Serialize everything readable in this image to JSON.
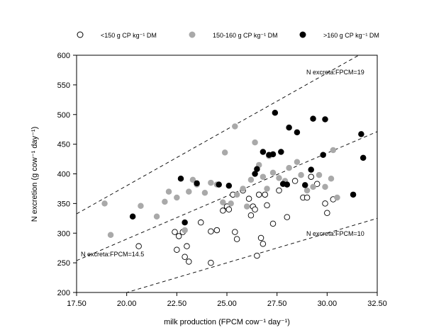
{
  "chart_data": {
    "type": "scatter",
    "xlabel": "milk production (FPCM cow⁻¹ day⁻¹)",
    "ylabel": "N excretion (g cow⁻¹ day⁻¹)",
    "xlim": [
      17.5,
      32.5
    ],
    "ylim": [
      200,
      600
    ],
    "x_ticks": [
      "17.50",
      "20.00",
      "22.50",
      "25.00",
      "27.50",
      "30.00",
      "32.50"
    ],
    "y_ticks": [
      "200",
      "250",
      "300",
      "350",
      "400",
      "450",
      "500",
      "550",
      "600"
    ],
    "grid": false,
    "legend_position": "top",
    "series": [
      {
        "name": "<150 g CP kg⁻¹ DM",
        "marker": "open-circle",
        "color": "#000000",
        "points": [
          [
            20.6,
            278
          ],
          [
            22.4,
            302
          ],
          [
            22.6,
            295
          ],
          [
            22.8,
            302
          ],
          [
            22.9,
            260
          ],
          [
            23.0,
            278
          ],
          [
            23.1,
            252
          ],
          [
            22.5,
            272
          ],
          [
            23.7,
            318
          ],
          [
            24.2,
            250
          ],
          [
            24.2,
            303
          ],
          [
            24.5,
            305
          ],
          [
            24.8,
            338
          ],
          [
            25.0,
            345
          ],
          [
            25.1,
            340
          ],
          [
            25.3,
            365
          ],
          [
            25.4,
            302
          ],
          [
            25.5,
            290
          ],
          [
            25.8,
            372
          ],
          [
            26.1,
            358
          ],
          [
            26.2,
            330
          ],
          [
            26.3,
            345
          ],
          [
            26.4,
            340
          ],
          [
            26.5,
            262
          ],
          [
            26.6,
            365
          ],
          [
            26.7,
            292
          ],
          [
            26.8,
            282
          ],
          [
            26.9,
            365
          ],
          [
            27.0,
            347
          ],
          [
            27.3,
            316
          ],
          [
            27.6,
            372
          ],
          [
            28.0,
            327
          ],
          [
            28.4,
            388
          ],
          [
            28.8,
            360
          ],
          [
            29.0,
            360
          ],
          [
            29.2,
            395
          ],
          [
            29.5,
            383
          ],
          [
            29.9,
            350
          ],
          [
            30.0,
            334
          ],
          [
            30.3,
            357
          ]
        ]
      },
      {
        "name": "150-160 g CP kg⁻¹ DM",
        "marker": "grey-circle",
        "color": "#a9a9a9",
        "points": [
          [
            18.9,
            350
          ],
          [
            19.2,
            297
          ],
          [
            20.7,
            346
          ],
          [
            21.5,
            328
          ],
          [
            21.9,
            353
          ],
          [
            22.1,
            370
          ],
          [
            22.5,
            360
          ],
          [
            22.9,
            305
          ],
          [
            23.1,
            370
          ],
          [
            23.3,
            390
          ],
          [
            23.5,
            382
          ],
          [
            23.9,
            368
          ],
          [
            24.2,
            385
          ],
          [
            24.5,
            382
          ],
          [
            24.8,
            352
          ],
          [
            24.9,
            436
          ],
          [
            25.2,
            350
          ],
          [
            25.4,
            480
          ],
          [
            25.5,
            365
          ],
          [
            25.8,
            375
          ],
          [
            26.0,
            345
          ],
          [
            26.2,
            390
          ],
          [
            26.4,
            453
          ],
          [
            26.6,
            415
          ],
          [
            26.8,
            395
          ],
          [
            27.0,
            375
          ],
          [
            27.1,
            430
          ],
          [
            27.3,
            402
          ],
          [
            27.6,
            393
          ],
          [
            27.9,
            388
          ],
          [
            28.1,
            410
          ],
          [
            28.5,
            420
          ],
          [
            28.7,
            398
          ],
          [
            29.0,
            372
          ],
          [
            29.3,
            378
          ],
          [
            29.6,
            398
          ],
          [
            29.9,
            378
          ],
          [
            30.2,
            392
          ],
          [
            30.3,
            440
          ],
          [
            30.5,
            360
          ]
        ]
      },
      {
        "name": ">160 g CP kg⁻¹ DM",
        "marker": "filled-circle",
        "color": "#000000",
        "points": [
          [
            20.3,
            328
          ],
          [
            22.7,
            392
          ],
          [
            22.9,
            318
          ],
          [
            23.5,
            384
          ],
          [
            24.6,
            382
          ],
          [
            25.1,
            380
          ],
          [
            26.4,
            400
          ],
          [
            26.5,
            408
          ],
          [
            26.8,
            437
          ],
          [
            27.1,
            432
          ],
          [
            27.3,
            433
          ],
          [
            27.4,
            503
          ],
          [
            27.7,
            437
          ],
          [
            27.8,
            383
          ],
          [
            28.0,
            382
          ],
          [
            28.1,
            478
          ],
          [
            28.5,
            470
          ],
          [
            28.9,
            381
          ],
          [
            29.2,
            407
          ],
          [
            29.3,
            493
          ],
          [
            29.8,
            432
          ],
          [
            29.9,
            492
          ],
          [
            31.3,
            365
          ],
          [
            31.7,
            467
          ],
          [
            31.8,
            427
          ]
        ]
      }
    ],
    "reference_lines": [
      {
        "label": "N excreta:FPCM=19",
        "slope": 19
      },
      {
        "label": "N excreta:FPCM=14.5",
        "slope": 14.5
      },
      {
        "label": "N excreta:FPCM=10",
        "slope": 10
      }
    ]
  }
}
